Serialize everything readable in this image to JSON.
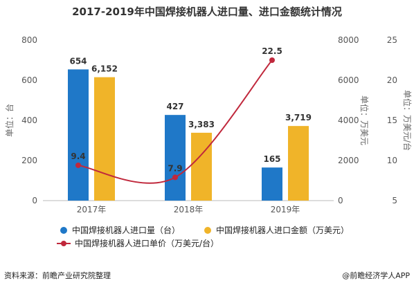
{
  "chart_data": {
    "type": "bar",
    "title": "2017-2019年中国焊接机器人进口量、进口金额统计情况",
    "categories": [
      "2017年",
      "2018年",
      "2019年"
    ],
    "series": [
      {
        "name": "中国焊接机器人进口量（台）",
        "type": "bar",
        "axis": "left",
        "color": "#1f78c8",
        "values": [
          654,
          427,
          165
        ],
        "labels": [
          "654",
          "427",
          "165"
        ]
      },
      {
        "name": "中国焊接机器人进口金额（万美元）",
        "type": "bar",
        "axis": "right1",
        "color": "#f0b429",
        "values": [
          6152,
          3383,
          3719
        ],
        "labels": [
          "6,152",
          "3,383",
          "3,719"
        ]
      },
      {
        "name": "中国焊接机器人进口单价（万美元/台）",
        "type": "line",
        "axis": "right2",
        "color": "#c0283c",
        "values": [
          9.4,
          7.9,
          22.5
        ],
        "labels": [
          "9.4",
          "7.9",
          "22.5"
        ]
      }
    ],
    "axes": {
      "left": {
        "label": "单位：台",
        "min": 0,
        "max": 800,
        "ticks": [
          "0",
          "200",
          "400",
          "600",
          "800"
        ]
      },
      "right1": {
        "label": "单位：万美元",
        "min": 0,
        "max": 8000,
        "ticks": [
          "0",
          "2000",
          "4000",
          "6000",
          "8000"
        ]
      },
      "right2": {
        "label": "单位：万美元/台",
        "min": 5,
        "max": 25,
        "ticks": [
          "5",
          "10",
          "15",
          "20",
          "25"
        ]
      }
    },
    "legend_position": "bottom",
    "grid": false
  },
  "footer": {
    "source": "资料来源：前瞻产业研究院整理",
    "brand": "@前瞻经济学人APP"
  }
}
